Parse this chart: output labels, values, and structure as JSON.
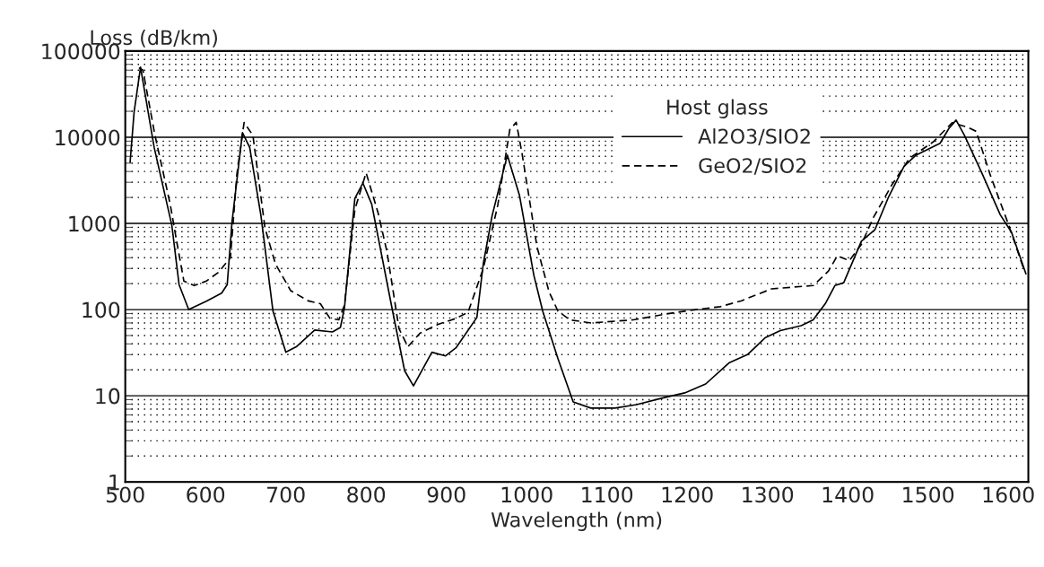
{
  "chart_data": {
    "type": "line",
    "xlabel": "Wavelength (nm)",
    "ylabel": "Loss (dB/km)",
    "legend_title": "Host glass",
    "log": "y",
    "grid": "y",
    "legend": "top right",
    "marker": "none",
    "xlim": [
      500,
      1625
    ],
    "xticks": [
      500,
      600,
      700,
      800,
      900,
      1000,
      1100,
      1200,
      1300,
      1400,
      1500,
      1600
    ],
    "ylim": [
      1,
      100000
    ],
    "yticks": [
      1,
      10,
      100,
      1000,
      10000,
      100000
    ],
    "series": [
      {
        "name": "Al2O3/SIO2",
        "color": "#000000",
        "line_style": "solid",
        "x": [
          506,
          511,
          519,
          536,
          558,
          567,
          579,
          601,
          620,
          627,
          633,
          646,
          655,
          669,
          684,
          700,
          713,
          736,
          758,
          768,
          773,
          786,
          796,
          807,
          833,
          848,
          859,
          882,
          899,
          912,
          938,
          946,
          957,
          976,
          991,
          1009,
          1020,
          1039,
          1058,
          1080,
          1110,
          1137,
          1167,
          1197,
          1223,
          1252,
          1275,
          1297,
          1316,
          1342,
          1357,
          1372,
          1384,
          1395,
          1417,
          1434,
          1451,
          1470,
          1485,
          1515,
          1526,
          1535,
          1545,
          1567,
          1590,
          1604,
          1622
        ],
        "values": [
          5100,
          19600,
          65000,
          7600,
          950,
          195,
          100,
          125,
          155,
          195,
          1050,
          11300,
          7600,
          1230,
          96,
          32,
          37,
          58,
          55,
          62,
          104,
          1950,
          2940,
          1670,
          96,
          19.5,
          13,
          32,
          29,
          36,
          81,
          340,
          1230,
          6200,
          2130,
          250,
          96,
          27,
          8.5,
          7.2,
          7.2,
          7.9,
          9.3,
          10.8,
          13.7,
          24,
          30,
          47,
          57,
          65,
          76,
          117,
          190,
          205,
          620,
          850,
          2040,
          4570,
          6200,
          8500,
          12600,
          15800,
          10700,
          3870,
          1260,
          790,
          260
        ]
      },
      {
        "name": "GeO2/SIO2",
        "color": "#000000",
        "line_style": "dashed",
        "x": [
          517,
          522,
          537,
          556,
          565,
          573,
          586,
          601,
          616,
          631,
          639,
          648,
          659,
          674,
          687,
          706,
          728,
          743,
          755,
          766,
          773,
          786,
          800,
          815,
          826,
          841,
          852,
          867,
          889,
          912,
          927,
          946,
          964,
          979,
          987,
          994,
          1013,
          1028,
          1039,
          1054,
          1080,
          1133,
          1174,
          1211,
          1241,
          1267,
          1305,
          1357,
          1376,
          1387,
          1402,
          1417,
          1432,
          1455,
          1477,
          1507,
          1530,
          1548,
          1560,
          1578,
          1601,
          1619
        ],
        "values": [
          64000,
          60000,
          10500,
          1660,
          550,
          214,
          190,
          214,
          270,
          400,
          3700,
          14800,
          10500,
          890,
          340,
          166,
          126,
          117,
          79,
          76,
          112,
          1450,
          3870,
          1320,
          470,
          60,
          37,
          53,
          67,
          79,
          93,
          300,
          1620,
          12200,
          14900,
          6700,
          530,
          160,
          96,
          76,
          70,
          76,
          89,
          100,
          108,
          126,
          174,
          190,
          280,
          420,
          370,
          570,
          1170,
          2800,
          5700,
          8900,
          14700,
          13200,
          11700,
          3550,
          930,
          300
        ]
      }
    ]
  }
}
